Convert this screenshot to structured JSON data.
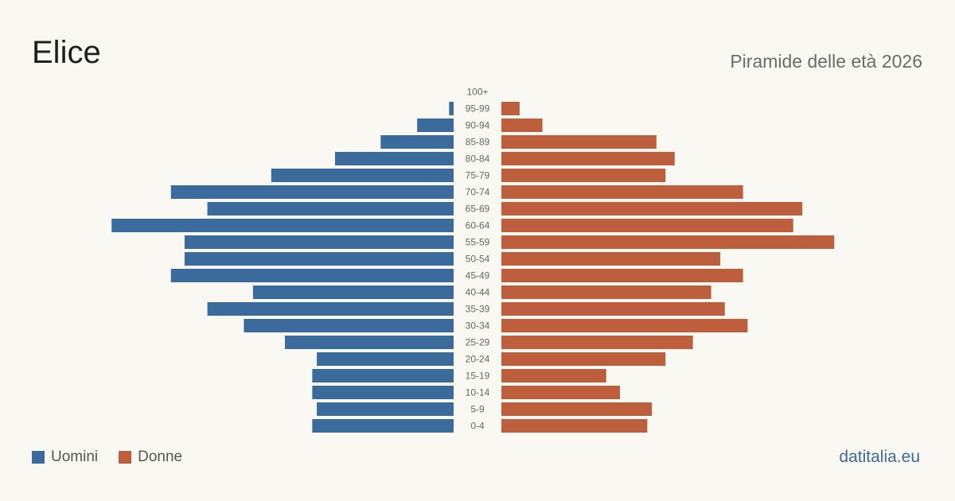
{
  "header": {
    "title": "Elice",
    "subtitle": "Piramide delle età 2026"
  },
  "legend": {
    "men_label": "Uomini",
    "women_label": "Donne"
  },
  "brand": "datitalia.eu",
  "colors": {
    "men": "#3b6a9c",
    "women": "#bd5e3c"
  },
  "chart_data": {
    "type": "bar",
    "orientation": "horizontal-pyramid",
    "categories": [
      "100+",
      "95-99",
      "90-94",
      "85-89",
      "80-84",
      "75-79",
      "70-74",
      "65-69",
      "60-64",
      "55-59",
      "50-54",
      "45-49",
      "40-44",
      "35-39",
      "30-34",
      "25-29",
      "20-24",
      "15-19",
      "10-14",
      "5-9",
      "0-4"
    ],
    "series": [
      {
        "name": "Uomini",
        "values": [
          0,
          1,
          8,
          16,
          26,
          40,
          62,
          54,
          75,
          59,
          59,
          62,
          44,
          54,
          46,
          37,
          30,
          31,
          31,
          30,
          31
        ]
      },
      {
        "name": "Donne",
        "values": [
          0,
          4,
          9,
          34,
          38,
          36,
          53,
          66,
          64,
          73,
          48,
          53,
          46,
          49,
          54,
          42,
          36,
          23,
          26,
          33,
          32
        ]
      }
    ],
    "legend_position": "bottom-left",
    "grid": false
  }
}
